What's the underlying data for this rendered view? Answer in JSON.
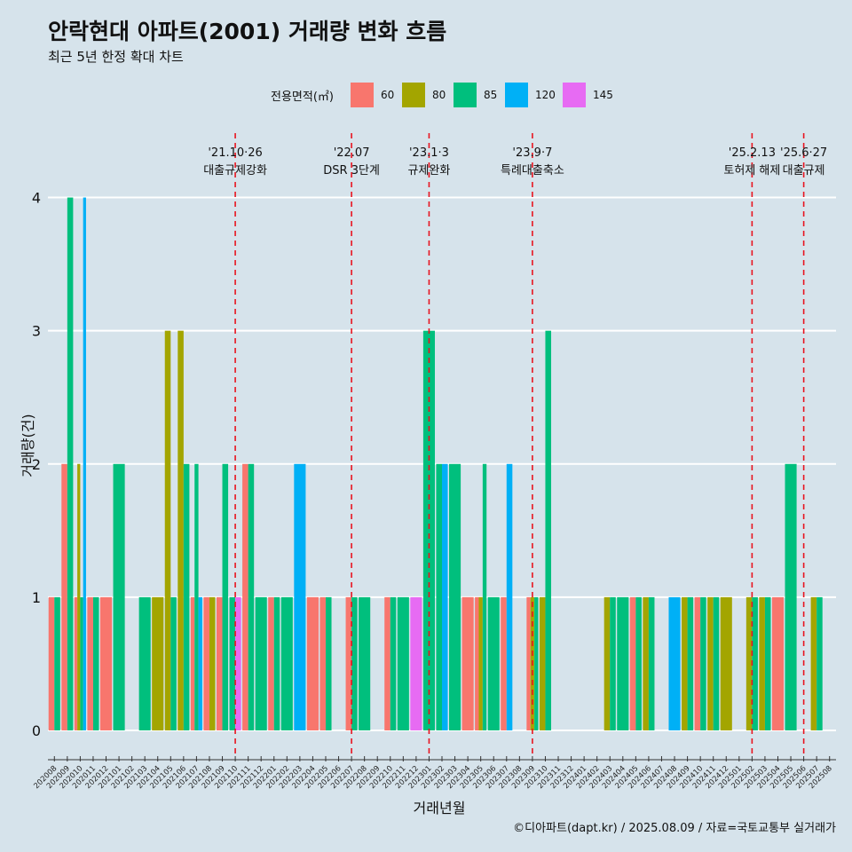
{
  "header": {
    "title": "안락현대 아파트(2001) 거래량 변화 흐름",
    "subtitle": "최근 5년 한정 확대 차트"
  },
  "legend": {
    "title": "전용면적(㎡)",
    "items": [
      {
        "label": "60",
        "color": "#F8766D"
      },
      {
        "label": "80",
        "color": "#A3A500"
      },
      {
        "label": "85",
        "color": "#00BF7D"
      },
      {
        "label": "120",
        "color": "#00B0F6"
      },
      {
        "label": "145",
        "color": "#E76BF3"
      }
    ]
  },
  "caption": "©디아파트(dapt.kr) / 2025.08.09 / 자료=국토교통부 실거래가",
  "chart_data": {
    "type": "bar",
    "xlabel": "거래년월",
    "ylabel": "거래량(건)",
    "ylim": [
      -0.18,
      4.55
    ],
    "yticks": [
      0,
      1,
      2,
      3,
      4
    ],
    "grid": "horizontal",
    "legend_position": "top",
    "categories": [
      "202008",
      "202009",
      "202010",
      "202011",
      "202012",
      "202101",
      "202102",
      "202103",
      "202104",
      "202105",
      "202106",
      "202107",
      "202108",
      "202109",
      "202110",
      "202111",
      "202112",
      "202201",
      "202202",
      "202203",
      "202204",
      "202205",
      "202206",
      "202207",
      "202208",
      "202209",
      "202210",
      "202211",
      "202212",
      "202301",
      "202302",
      "202303",
      "202304",
      "202305",
      "202306",
      "202307",
      "202308",
      "202309",
      "202310",
      "202311",
      "202312",
      "202401",
      "202402",
      "202403",
      "202404",
      "202405",
      "202406",
      "202407",
      "202408",
      "202409",
      "202410",
      "202411",
      "202412",
      "202501",
      "202502",
      "202503",
      "202504",
      "202505",
      "202506",
      "202507",
      "202508"
    ],
    "series": [
      {
        "name": "60",
        "values": [
          1,
          2,
          1,
          1,
          1,
          0,
          0,
          0,
          0,
          0,
          0,
          1,
          1,
          1,
          0,
          2,
          0,
          1,
          0,
          0,
          1,
          1,
          0,
          1,
          0,
          0,
          1,
          0,
          0,
          0,
          0,
          0,
          1,
          1,
          0,
          1,
          0,
          1,
          0,
          0,
          0,
          0,
          0,
          0,
          0,
          1,
          0,
          0,
          0,
          0,
          1,
          0,
          0,
          0,
          0,
          0,
          1,
          0,
          0,
          0,
          0
        ]
      },
      {
        "name": "80",
        "values": [
          0,
          0,
          2,
          0,
          0,
          0,
          0,
          0,
          1,
          3,
          3,
          0,
          1,
          0,
          0,
          0,
          0,
          0,
          0,
          0,
          0,
          0,
          0,
          0,
          0,
          0,
          0,
          0,
          0,
          0,
          0,
          0,
          0,
          1,
          0,
          0,
          0,
          1,
          1,
          0,
          0,
          0,
          0,
          1,
          0,
          0,
          1,
          0,
          0,
          1,
          0,
          1,
          1,
          0,
          1,
          1,
          0,
          0,
          0,
          1,
          0
        ]
      },
      {
        "name": "85",
        "values": [
          1,
          4,
          1,
          1,
          0,
          2,
          0,
          1,
          0,
          1,
          2,
          2,
          0,
          2,
          1,
          2,
          1,
          1,
          1,
          0,
          0,
          1,
          0,
          1,
          1,
          0,
          1,
          1,
          0,
          3,
          2,
          2,
          0,
          2,
          1,
          0,
          0,
          1,
          3,
          0,
          0,
          0,
          0,
          1,
          1,
          1,
          1,
          0,
          0,
          1,
          1,
          1,
          0,
          0,
          1,
          1,
          0,
          2,
          0,
          1,
          0
        ]
      },
      {
        "name": "120",
        "values": [
          0,
          0,
          4,
          0,
          0,
          0,
          0,
          0,
          0,
          0,
          0,
          1,
          0,
          0,
          0,
          0,
          0,
          0,
          0,
          2,
          0,
          0,
          0,
          0,
          0,
          0,
          0,
          0,
          0,
          0,
          2,
          0,
          0,
          0,
          0,
          2,
          0,
          0,
          0,
          0,
          0,
          0,
          0,
          0,
          0,
          0,
          0,
          0,
          1,
          0,
          0,
          0,
          0,
          0,
          0,
          0,
          0,
          0,
          0,
          0,
          0
        ]
      },
      {
        "name": "145",
        "values": [
          0,
          0,
          0,
          0,
          0,
          0,
          0,
          0,
          0,
          0,
          0,
          0,
          0,
          0,
          1,
          0,
          0,
          0,
          0,
          0,
          0,
          0,
          0,
          0,
          0,
          0,
          0,
          0,
          1,
          0,
          0,
          0,
          0,
          0,
          0,
          0,
          0,
          0,
          0,
          0,
          0,
          0,
          0,
          0,
          0,
          0,
          0,
          0,
          0,
          0,
          0,
          0,
          0,
          0,
          0,
          0,
          0,
          0,
          0,
          0,
          0
        ]
      }
    ],
    "annotations": [
      {
        "x": "202110",
        "line1": "'21.10·26",
        "line2": "대출규제강화"
      },
      {
        "x": "202207",
        "line1": "'22.07",
        "line2": "DSR 3단계"
      },
      {
        "x": "202301",
        "line1": "'23.1·3",
        "line2": "규제완화"
      },
      {
        "x": "202309",
        "line1": "'23.9·7",
        "line2": "특례대출축소"
      },
      {
        "x": "202502",
        "line1": "'25.2.13",
        "line2": "토허제 해제"
      },
      {
        "x": "202506",
        "line1": "'25.6·27",
        "line2": "대출규제"
      }
    ]
  }
}
